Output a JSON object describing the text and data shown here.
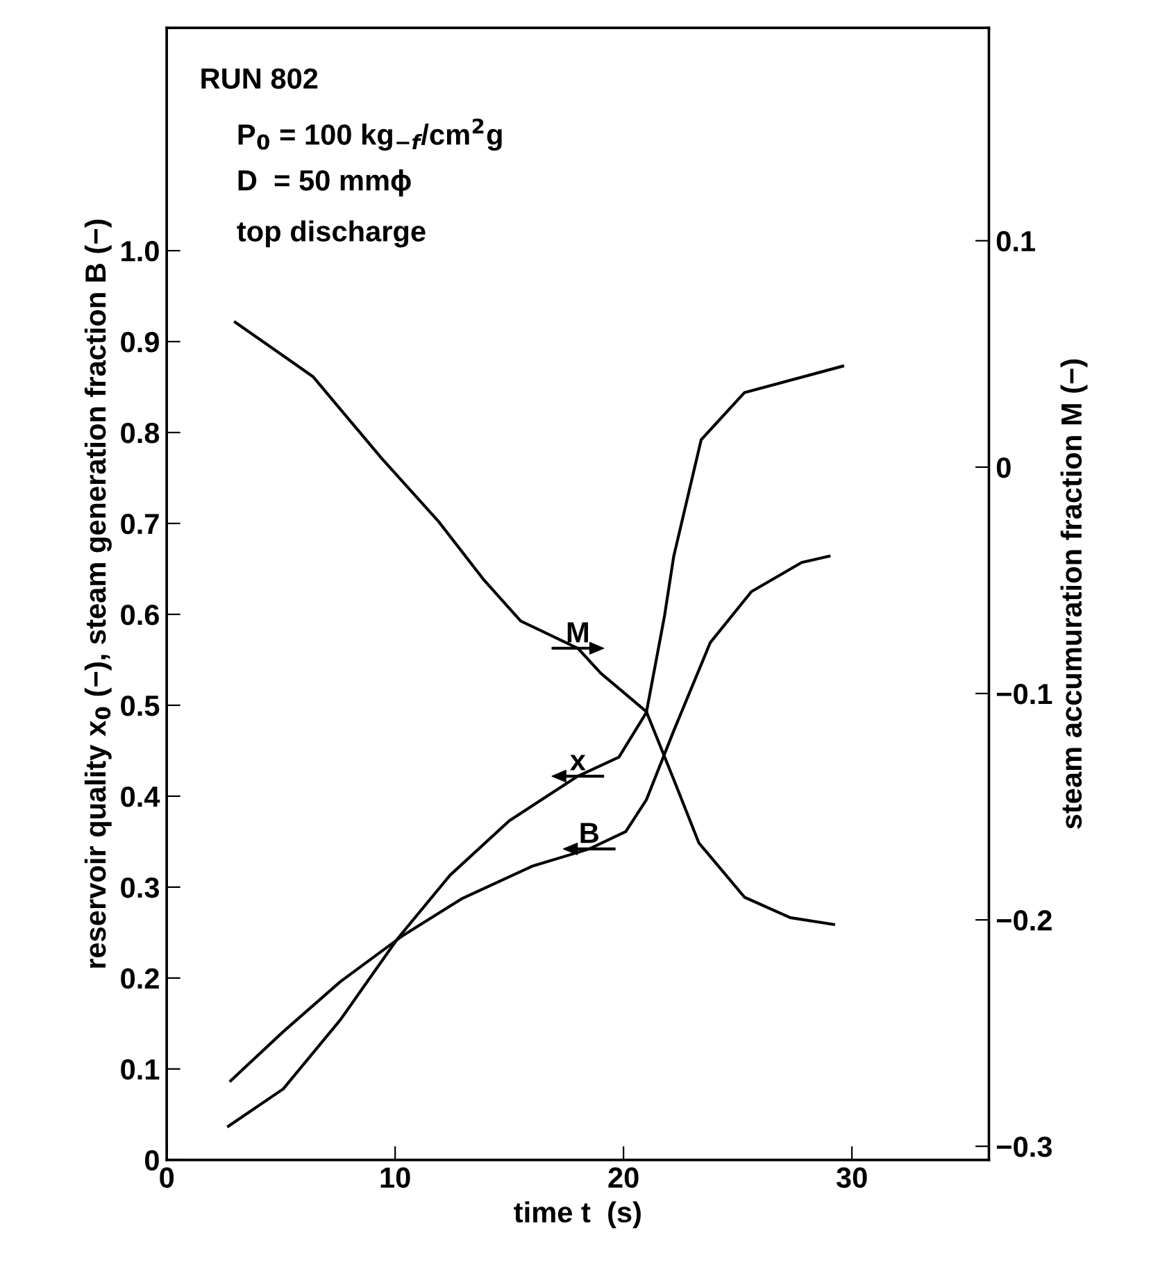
{
  "chart_data": {
    "type": "line",
    "xlabel": "time t  (s)",
    "ylabel": "reservoir quality x$_{0}$ (−), steam generation fraction B (−)",
    "y2label": "steam accumuration fraction M (−)",
    "annotations": [
      "RUN 802",
      "P$_{0}$ = 100 kg$_{−f}$/cm$^{2}$g",
      "D  = 50 mmϕ",
      "top discharge"
    ],
    "xlim": [
      0,
      36
    ],
    "xticks": [
      0,
      10,
      20,
      30
    ],
    "ylim": [
      0,
      1.245
    ],
    "yticks": [
      0,
      0.1,
      0.2,
      0.3,
      0.4,
      0.5,
      0.6,
      0.7,
      0.8,
      0.9,
      {
        "value": 1.0,
        "label": "1.0"
      }
    ],
    "y2lim": [
      -0.306,
      0.194
    ],
    "y2ticks": [
      {
        "value": -0.3,
        "label": "−0.3"
      },
      {
        "value": -0.2,
        "label": "−0.2"
      },
      {
        "value": -0.1,
        "label": "−0.1"
      },
      0,
      0.1
    ],
    "grid": false,
    "legend": false,
    "marker": "none",
    "line_style": "solid",
    "series": [
      {
        "name": "M",
        "color": "#000000",
        "axis": "y2",
        "x": [
          3.0,
          6.4,
          9.4,
          11.9,
          13.9,
          15.5,
          18.0,
          19.0,
          21.0,
          22.2,
          23.3,
          25.3,
          27.3,
          29.2
        ],
        "values": [
          0.064,
          0.04,
          0.004,
          -0.024,
          -0.05,
          -0.068,
          -0.08,
          -0.091,
          -0.108,
          -0.138,
          -0.166,
          -0.19,
          -0.199,
          -0.202
        ]
      },
      {
        "name": "x",
        "color": "#000000",
        "x": [
          2.7,
          5.1,
          7.6,
          10.1,
          12.4,
          15.0,
          18.0,
          19.8,
          21.0,
          21.8,
          22.2,
          23.4,
          25.3,
          29.6
        ],
        "values": [
          0.037,
          0.078,
          0.154,
          0.243,
          0.313,
          0.373,
          0.422,
          0.443,
          0.492,
          0.599,
          0.664,
          0.792,
          0.844,
          0.873
        ]
      },
      {
        "name": "B",
        "color": "#000000",
        "x": [
          2.8,
          5.1,
          7.6,
          10.3,
          12.9,
          16.0,
          18.5,
          20.1,
          21.0,
          22.2,
          23.8,
          25.6,
          27.8,
          29.0
        ],
        "values": [
          0.087,
          0.141,
          0.196,
          0.246,
          0.287,
          0.323,
          0.342,
          0.361,
          0.396,
          0.472,
          0.569,
          0.625,
          0.657,
          0.664
        ]
      }
    ]
  }
}
